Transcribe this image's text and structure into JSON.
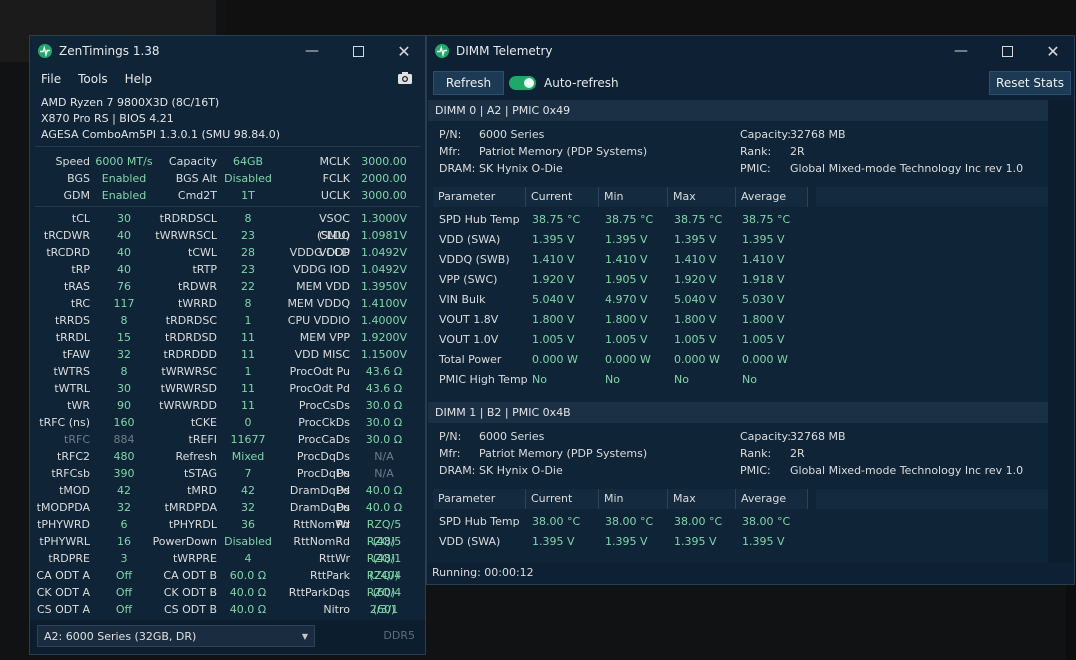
{
  "zen": {
    "title": "ZenTimings 1.38",
    "menu": [
      "File",
      "Tools",
      "Help"
    ],
    "sysinfo": [
      "AMD Ryzen 7 9800X3D (8C/16T)",
      "X870 Pro RS | BIOS 4.21",
      "AGESA ComboAm5PI 1.3.0.1 (SMU 98.84.0)"
    ],
    "top_rows": [
      [
        [
          "Speed",
          "6000 MT/s"
        ],
        [
          "Capacity",
          "64GB"
        ],
        [
          "MCLK",
          "3000.00"
        ]
      ],
      [
        [
          "BGS",
          "Enabled"
        ],
        [
          "BGS Alt",
          "Disabled"
        ],
        [
          "FCLK",
          "2000.00"
        ]
      ],
      [
        [
          "GDM",
          "Enabled"
        ],
        [
          "Cmd2T",
          "1T"
        ],
        [
          "UCLK",
          "3000.00"
        ]
      ]
    ],
    "timing_rows": [
      [
        [
          "tCL",
          "30"
        ],
        [
          "tRDRDSCL",
          "8"
        ],
        [
          "VSOC (SMU)",
          "1.3000V"
        ]
      ],
      [
        [
          "tRCDWR",
          "40"
        ],
        [
          "tWRWRSCL",
          "23"
        ],
        [
          "CLDO VDDP",
          "1.0981V"
        ]
      ],
      [
        [
          "tRCDRD",
          "40"
        ],
        [
          "tCWL",
          "28"
        ],
        [
          "VDDG CCD",
          "1.0492V"
        ]
      ],
      [
        [
          "tRP",
          "40"
        ],
        [
          "tRTP",
          "23"
        ],
        [
          "VDDG IOD",
          "1.0492V"
        ]
      ],
      [
        [
          "tRAS",
          "76"
        ],
        [
          "tRDWR",
          "22"
        ],
        [
          "MEM VDD",
          "1.3950V"
        ]
      ],
      [
        [
          "tRC",
          "117"
        ],
        [
          "tWRRD",
          "8"
        ],
        [
          "MEM VDDQ",
          "1.4100V"
        ]
      ],
      [
        [
          "tRRDS",
          "8"
        ],
        [
          "tRDRDSC",
          "1"
        ],
        [
          "CPU VDDIO",
          "1.4000V"
        ]
      ],
      [
        [
          "tRRDL",
          "15"
        ],
        [
          "tRDRDSD",
          "11"
        ],
        [
          "MEM VPP",
          "1.9200V"
        ]
      ],
      [
        [
          "tFAW",
          "32"
        ],
        [
          "tRDRDDD",
          "11"
        ],
        [
          "VDD MISC",
          "1.1500V"
        ]
      ],
      [
        [
          "tWTRS",
          "8"
        ],
        [
          "tWRWRSC",
          "1"
        ],
        [
          "ProcOdt Pu",
          "43.6 Ω"
        ]
      ],
      [
        [
          "tWTRL",
          "30"
        ],
        [
          "tWRWRSD",
          "11"
        ],
        [
          "ProcOdt Pd",
          "43.6 Ω"
        ]
      ],
      [
        [
          "tWR",
          "90"
        ],
        [
          "tWRWRDD",
          "11"
        ],
        [
          "ProcCsDs",
          "30.0 Ω"
        ]
      ],
      [
        [
          "tRFC (ns)",
          "160"
        ],
        [
          "tCKE",
          "0"
        ],
        [
          "ProcCkDs",
          "30.0 Ω"
        ]
      ],
      [
        [
          "tRFC",
          "884"
        ],
        [
          "tREFI",
          "11677"
        ],
        [
          "ProcCaDs",
          "30.0 Ω"
        ]
      ],
      [
        [
          "tRFC2",
          "480"
        ],
        [
          "Refresh",
          "Mixed"
        ],
        [
          "ProcDqDs Pu",
          "N/A"
        ]
      ],
      [
        [
          "tRFCsb",
          "390"
        ],
        [
          "tSTAG",
          "7"
        ],
        [
          "ProcDqDs Pd",
          "N/A"
        ]
      ],
      [
        [
          "tMOD",
          "42"
        ],
        [
          "tMRD",
          "42"
        ],
        [
          "DramDqDs Pu",
          "40.0 Ω"
        ]
      ],
      [
        [
          "tMODPDA",
          "32"
        ],
        [
          "tMRDPDA",
          "32"
        ],
        [
          "DramDqDs Pd",
          "40.0 Ω"
        ]
      ],
      [
        [
          "tPHYWRD",
          "6"
        ],
        [
          "tPHYRDL",
          "36"
        ],
        [
          "RttNomWr",
          "RZQ/5 (48)"
        ]
      ],
      [
        [
          "tPHYWRL",
          "16"
        ],
        [
          "PowerDown",
          "Disabled"
        ],
        [
          "RttNomRd",
          "RZQ/5 (48)"
        ]
      ],
      [
        [
          "tRDPRE",
          "3"
        ],
        [
          "tWRPRE",
          "4"
        ],
        [
          "RttWr",
          "RZQ/1 (240)"
        ]
      ],
      [
        [
          "CA ODT A",
          "Off"
        ],
        [
          "CA ODT B",
          "60.0 Ω"
        ],
        [
          "RttPark",
          "RZQ/4 (60)"
        ]
      ],
      [
        [
          "CK ODT A",
          "Off"
        ],
        [
          "CK ODT B",
          "40.0 Ω"
        ],
        [
          "RttParkDqs",
          "RZQ/4 (60)"
        ]
      ],
      [
        [
          "CS ODT A",
          "Off"
        ],
        [
          "CS ODT B",
          "40.0 Ω"
        ],
        [
          "Nitro",
          "2/3/1"
        ]
      ]
    ],
    "dropdown": "A2: 6000 Series (32GB, DR)",
    "ddr": "DDR5"
  },
  "dimm": {
    "title": "DIMM Telemetry",
    "refresh": "Refresh",
    "autorefresh": "Auto-refresh",
    "reset": "Reset Stats",
    "columns": [
      "Parameter",
      "Current",
      "Min",
      "Max",
      "Average"
    ],
    "modules": [
      {
        "header": "DIMM 0 | A2 | PMIC 0x49",
        "pn_label": "P/N:",
        "pn": "6000 Series",
        "mfr_label": "Mfr:",
        "mfr": "Patriot Memory (PDP Systems)",
        "dram_label": "DRAM:",
        "dram": "SK Hynix O-Die",
        "cap_label": "Capacity:",
        "cap": "32768 MB",
        "rank_label": "Rank:",
        "rank": "2R",
        "pmic_label": "PMIC:",
        "pmic": "Global Mixed-mode Technology Inc rev 1.0",
        "rows": [
          [
            "SPD Hub Temp",
            "38.75 °C",
            "38.75 °C",
            "38.75 °C",
            "38.75 °C"
          ],
          [
            "VDD (SWA)",
            "1.395 V",
            "1.395 V",
            "1.395 V",
            "1.395 V"
          ],
          [
            "VDDQ (SWB)",
            "1.410 V",
            "1.410 V",
            "1.410 V",
            "1.410 V"
          ],
          [
            "VPP (SWC)",
            "1.920 V",
            "1.905 V",
            "1.920 V",
            "1.918 V"
          ],
          [
            "VIN Bulk",
            "5.040 V",
            "4.970 V",
            "5.040 V",
            "5.030 V"
          ],
          [
            "VOUT 1.8V",
            "1.800 V",
            "1.800 V",
            "1.800 V",
            "1.800 V"
          ],
          [
            "VOUT 1.0V",
            "1.005 V",
            "1.005 V",
            "1.005 V",
            "1.005 V"
          ],
          [
            "Total Power",
            "0.000 W",
            "0.000 W",
            "0.000 W",
            "0.000 W"
          ],
          [
            "PMIC High Temp",
            "No",
            "No",
            "No",
            "No"
          ]
        ]
      },
      {
        "header": "DIMM 1 | B2 | PMIC 0x4B",
        "pn_label": "P/N:",
        "pn": "6000 Series",
        "mfr_label": "Mfr:",
        "mfr": "Patriot Memory (PDP Systems)",
        "dram_label": "DRAM:",
        "dram": "SK Hynix O-Die",
        "cap_label": "Capacity:",
        "cap": "32768 MB",
        "rank_label": "Rank:",
        "rank": "2R",
        "pmic_label": "PMIC:",
        "pmic": "Global Mixed-mode Technology Inc rev 1.0",
        "rows": [
          [
            "SPD Hub Temp",
            "38.00 °C",
            "38.00 °C",
            "38.00 °C",
            "38.00 °C"
          ],
          [
            "VDD (SWA)",
            "1.395 V",
            "1.395 V",
            "1.395 V",
            "1.395 V"
          ]
        ]
      }
    ],
    "status": "Running: 00:00:12"
  }
}
